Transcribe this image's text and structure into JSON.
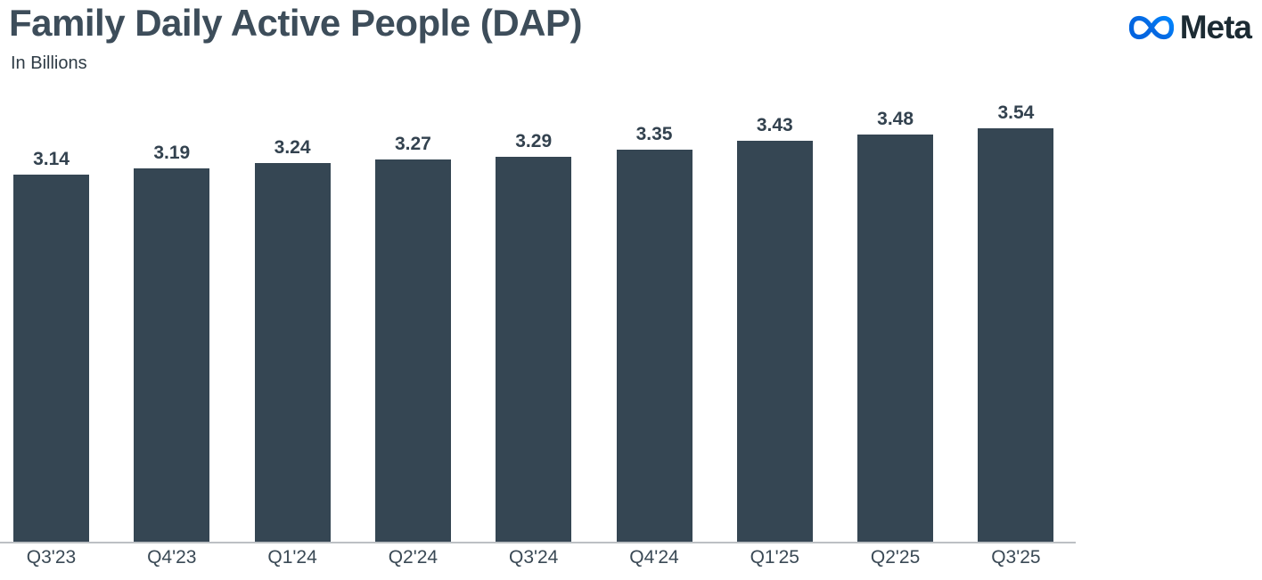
{
  "header": {
    "title": "Family Daily Active People (DAP)",
    "subtitle": "In Billions"
  },
  "brand": {
    "wordmark": "Meta",
    "icon": "meta-infinity-icon",
    "logo_blue_start": "#0064E0",
    "logo_blue_end": "#0082FB",
    "wordmark_color": "#1C2B33"
  },
  "chart_data": {
    "type": "bar",
    "title": "Family Daily Active People (DAP)",
    "subtitle": "In Billions",
    "unit": "billions of people",
    "categories": [
      "Q3'23",
      "Q4'23",
      "Q1'24",
      "Q2'24",
      "Q3'24",
      "Q4'24",
      "Q1'25",
      "Q2'25",
      "Q3'25"
    ],
    "values": [
      3.14,
      3.19,
      3.24,
      3.27,
      3.29,
      3.35,
      3.43,
      3.48,
      3.54
    ],
    "value_label_format": "2-decimals",
    "value_labels_position": "above-bars",
    "baseline": "zero",
    "ylim": [
      0,
      3.54
    ],
    "grid": false,
    "legend": false,
    "bar_color": "#354653",
    "value_label_color": "#33424F",
    "x_label_color": "#3A4955",
    "axis_line_color": "#BCC0C4"
  }
}
